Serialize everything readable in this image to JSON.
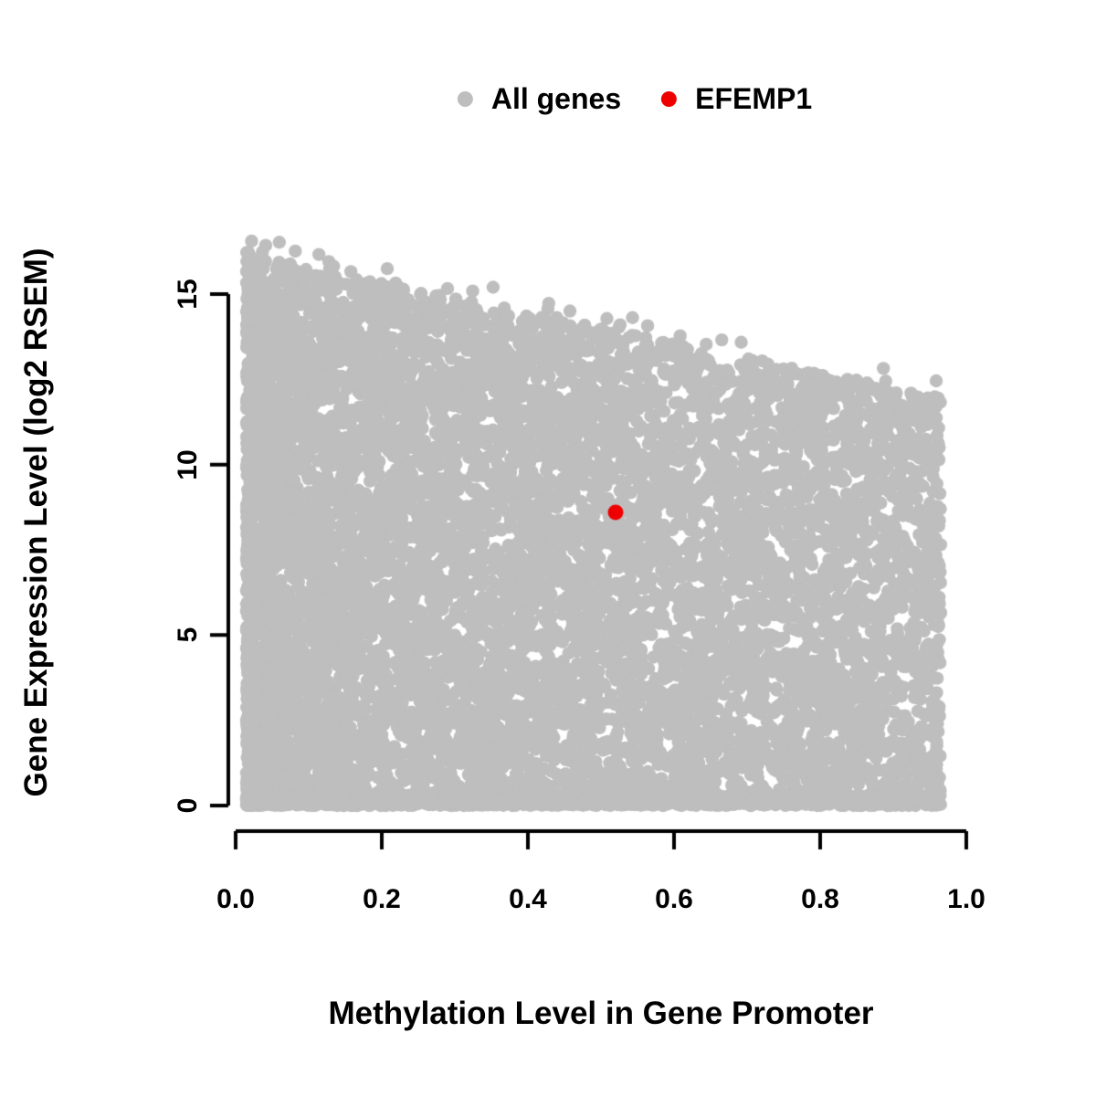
{
  "chart_data": {
    "type": "scatter",
    "title": "",
    "xlabel": "Methylation Level in Gene Promoter",
    "ylabel": "Gene Expression Level (log2 RSEM)",
    "xlim": [
      0,
      1.0
    ],
    "ylim": [
      0,
      16.6
    ],
    "x_tick_labels": [
      "0.0",
      "0.2",
      "0.4",
      "0.6",
      "0.8",
      "1.0"
    ],
    "x_tick_values": [
      0,
      0.2,
      0.4,
      0.6,
      0.8,
      1.0
    ],
    "y_tick_labels": [
      "0",
      "5",
      "10",
      "15"
    ],
    "y_tick_values": [
      0,
      5,
      10,
      15
    ],
    "grid": false,
    "legend_position": "top-center",
    "axis_color": "#000000",
    "series": [
      {
        "name": "All genes",
        "color": "#bebebe",
        "kind": "dense_cloud",
        "n_points": 11000,
        "seed": 20240613,
        "x_range": [
          0.015,
          0.965
        ],
        "x_skew": 1.45,
        "upper_envelope_y_at_x0": 16.2,
        "upper_envelope_y_at_x1": 11.8,
        "bottom_edge_fraction": 0.15,
        "outlier_fraction": 0.004,
        "description": "Dense cloud of ~11000 genes: densest at low promoter methylation where expression spans 0 to ~16; the maximum expression declines roughly linearly to ~12 as methylation approaches 0.95; a solid edge of points lies at expression 0 across the full methylation range."
      },
      {
        "name": "EFEMP1",
        "color": "#ee0000",
        "kind": "points",
        "points": [
          [
            0.52,
            8.6
          ]
        ]
      }
    ]
  }
}
